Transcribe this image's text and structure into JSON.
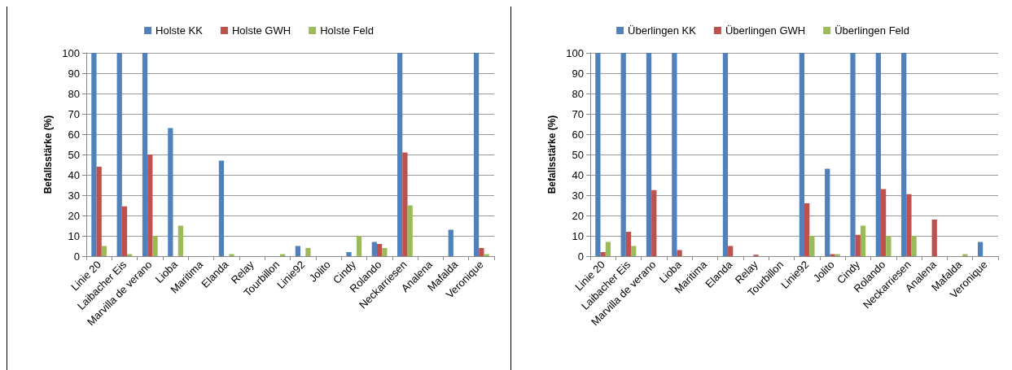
{
  "chart_data": [
    {
      "type": "bar",
      "ylabel": "Befallsstärke (%)",
      "categories": [
        "Linie 20",
        "Laibacher Eis",
        "Marvilla de verano",
        "Lioba",
        "Maritima",
        "Elanda",
        "Relay",
        "Tourbillon",
        "Linie92",
        "Jolito",
        "Cindy",
        "Rolando",
        "Neckarriesen",
        "Analena",
        "Mafalda",
        "Veronique"
      ],
      "ylim": [
        0,
        100
      ],
      "yticks": [
        0,
        10,
        20,
        30,
        40,
        50,
        60,
        70,
        80,
        90,
        100
      ],
      "grid": "y",
      "legend": "top",
      "series": [
        {
          "name": "Holste KK",
          "color": "#4f81bd",
          "values": [
            100,
            100,
            100,
            63,
            0,
            47,
            0,
            0,
            5,
            0,
            2,
            7,
            100,
            0,
            13,
            100
          ]
        },
        {
          "name": "Holste GWH",
          "color": "#c0504d",
          "values": [
            44,
            24.5,
            50,
            0,
            0,
            0,
            0,
            0,
            0,
            0,
            0,
            6,
            51,
            0,
            0,
            4
          ]
        },
        {
          "name": "Holste Feld",
          "color": "#9bbb59",
          "values": [
            5,
            1,
            10,
            15,
            0,
            1,
            0,
            1,
            4,
            0,
            10,
            4,
            25,
            0,
            0,
            1
          ]
        }
      ]
    },
    {
      "type": "bar",
      "ylabel": "Befallsstärke (%)",
      "categories": [
        "Linie 20",
        "Laibacher Eis",
        "Marvilla de verano",
        "Lioba",
        "Maritima",
        "Elanda",
        "Relay",
        "Tourbillon",
        "Linie92",
        "Jolito",
        "Cindy",
        "Rolando",
        "Neckarriesen",
        "Analena",
        "Mafalda",
        "Veronique"
      ],
      "ylim": [
        0,
        100
      ],
      "yticks": [
        0,
        10,
        20,
        30,
        40,
        50,
        60,
        70,
        80,
        90,
        100
      ],
      "grid": "y",
      "legend": "top",
      "series": [
        {
          "name": "Überlingen KK",
          "color": "#4f81bd",
          "values": [
            100,
            100,
            100,
            100,
            0,
            100,
            0,
            0,
            100,
            43,
            100,
            100,
            100,
            0,
            0,
            7
          ]
        },
        {
          "name": "Überlingen GWH",
          "color": "#c0504d",
          "values": [
            2,
            12,
            32.5,
            3,
            0,
            5,
            0.7,
            0,
            26,
            1,
            10.5,
            33,
            30.5,
            18,
            0,
            0
          ]
        },
        {
          "name": "Überlingen Feld",
          "color": "#9bbb59",
          "values": [
            7,
            5,
            0,
            0,
            0,
            0,
            0,
            0,
            10,
            1,
            15,
            10,
            10,
            0,
            1,
            0
          ]
        }
      ]
    }
  ]
}
